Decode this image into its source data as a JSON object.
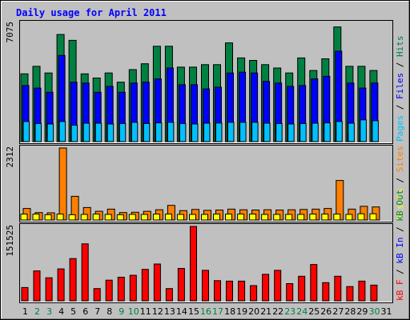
{
  "chart_data": {
    "type": "bar",
    "title": "Daily usage for April 2011",
    "days": [
      "1",
      "2",
      "3",
      "4",
      "5",
      "6",
      "7",
      "8",
      "9",
      "10",
      "11",
      "12",
      "13",
      "14",
      "15",
      "16",
      "17",
      "18",
      "19",
      "20",
      "21",
      "22",
      "23",
      "24",
      "25",
      "26",
      "27",
      "28",
      "29",
      "30",
      "31"
    ],
    "weekend_days": [
      "2",
      "3",
      "9",
      "10",
      "16",
      "17",
      "23",
      "24",
      "30"
    ],
    "empty_days": [
      "31"
    ],
    "colors": {
      "hits": "#008040",
      "files": "#0000ff",
      "pages": "#00c0ff",
      "visits": "#ffff00",
      "sites": "#ff8000",
      "kbytes": "#ff0000",
      "background": "#c0c0c0",
      "weekday_label": "#000000",
      "weekend_label": "#008040",
      "title": "#0000ff"
    },
    "panels": [
      {
        "id": "top",
        "max_label": "7075",
        "ymax": 7075,
        "legend": [
          {
            "text": "Pages",
            "color": "#00c0ff"
          },
          {
            "text": " / ",
            "color": "#000000"
          },
          {
            "text": "Files",
            "color": "#0000ff"
          },
          {
            "text": " / ",
            "color": "#000000"
          },
          {
            "text": "Hits",
            "color": "#008040"
          }
        ],
        "series": [
          {
            "name": "Hits",
            "color": "#008040",
            "values": [
              4050,
              4500,
              4100,
              6400,
              6050,
              4050,
              3800,
              4100,
              3550,
              4300,
              4650,
              5700,
              5700,
              4450,
              4450,
              4600,
              4600,
              5900,
              5000,
              4850,
              4600,
              4400,
              4100,
              5000,
              4250,
              4950,
              6850,
              4500,
              4500,
              4250,
              0
            ]
          },
          {
            "name": "Files",
            "color": "#0000ff",
            "values": [
              3350,
              3200,
              2950,
              5150,
              3550,
              3500,
              2950,
              3300,
              2950,
              3500,
              3550,
              3750,
              4400,
              3400,
              3400,
              3150,
              3250,
              4100,
              4150,
              4100,
              3600,
              3500,
              3300,
              3350,
              3750,
              3900,
              5400,
              3500,
              3200,
              3500,
              0
            ]
          },
          {
            "name": "Pages",
            "color": "#00c0ff",
            "values": [
              1200,
              1080,
              1050,
              1200,
              980,
              1100,
              1100,
              1050,
              1080,
              1150,
              1080,
              1120,
              1150,
              1080,
              1050,
              1100,
              1110,
              1150,
              1150,
              1150,
              1100,
              1080,
              1050,
              1080,
              1100,
              1120,
              1200,
              1100,
              1300,
              1250,
              0
            ]
          }
        ]
      },
      {
        "id": "middle",
        "max_label": "2312",
        "ymax": 2312,
        "legend": [
          {
            "text": "Visits",
            "color": "#ffff00"
          },
          {
            "text": " / ",
            "color": "#000000"
          },
          {
            "text": "Sites",
            "color": "#ff8000"
          }
        ],
        "series": [
          {
            "name": "Sites",
            "color": "#ff8000",
            "values": [
              370,
              240,
              230,
              2312,
              760,
              400,
              280,
              350,
              240,
              250,
              280,
              330,
              470,
              300,
              340,
              310,
              320,
              350,
              330,
              320,
              330,
              320,
              330,
              340,
              350,
              370,
              1270,
              350,
              440,
              420,
              0
            ]
          },
          {
            "name": "Visits",
            "color": "#ffff00",
            "values": [
              190,
              190,
              170,
              190,
              170,
              180,
              190,
              180,
              170,
              180,
              180,
              190,
              190,
              180,
              180,
              180,
              190,
              190,
              190,
              190,
              180,
              180,
              180,
              180,
              190,
              190,
              190,
              180,
              200,
              200,
              0
            ]
          }
        ]
      },
      {
        "id": "bottom",
        "max_label": "151525",
        "ymax": 151525,
        "legend": [
          {
            "text": "kB F",
            "color": "#ff0000"
          },
          {
            "text": " / ",
            "color": "#000000"
          },
          {
            "text": "kB In",
            "color": "#0000ff"
          },
          {
            "text": " / ",
            "color": "#000000"
          },
          {
            "text": "kB Out",
            "color": "#008040"
          }
        ],
        "series": [
          {
            "name": "kB F",
            "color": "#ff0000",
            "values": [
              27000,
              61000,
              47000,
              65000,
              86000,
              116000,
              25000,
              42000,
              48000,
              52000,
              64000,
              75000,
              25000,
              66000,
              151525,
              62000,
              41000,
              40000,
              40000,
              31000,
              54000,
              62000,
              35000,
              50000,
              74000,
              37000,
              50000,
              29000,
              40000,
              32000,
              0
            ]
          }
        ]
      }
    ]
  }
}
